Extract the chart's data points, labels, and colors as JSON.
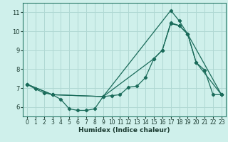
{
  "title": "",
  "xlabel": "Humidex (Indice chaleur)",
  "background_color": "#cff0eb",
  "grid_color": "#b0d8d3",
  "line_color": "#1a6b5a",
  "xlim": [
    -0.5,
    23.5
  ],
  "ylim": [
    5.5,
    11.5
  ],
  "xticks": [
    0,
    1,
    2,
    3,
    4,
    5,
    6,
    7,
    8,
    9,
    10,
    11,
    12,
    13,
    14,
    15,
    16,
    17,
    18,
    19,
    20,
    21,
    22,
    23
  ],
  "yticks": [
    6,
    7,
    8,
    9,
    10,
    11
  ],
  "line1_x": [
    0,
    1,
    2,
    3,
    4,
    5,
    6,
    7,
    8,
    9,
    10,
    11,
    12,
    13,
    14,
    15,
    16,
    17,
    18,
    19,
    20,
    21,
    22,
    23
  ],
  "line1_y": [
    7.2,
    6.95,
    6.75,
    6.65,
    6.4,
    5.9,
    5.82,
    5.82,
    5.9,
    6.55,
    6.6,
    6.65,
    7.05,
    7.1,
    7.55,
    8.55,
    9.0,
    10.4,
    10.3,
    9.85,
    8.35,
    7.95,
    6.65,
    6.65
  ],
  "line2_x": [
    0,
    3,
    9,
    15,
    16,
    17,
    18,
    19,
    20,
    23
  ],
  "line2_y": [
    7.2,
    6.65,
    6.55,
    8.55,
    9.0,
    10.45,
    10.3,
    9.85,
    8.35,
    6.65
  ],
  "line3_x": [
    0,
    3,
    9,
    17,
    18,
    19,
    23
  ],
  "line3_y": [
    7.2,
    6.65,
    6.55,
    11.1,
    10.55,
    9.85,
    6.65
  ]
}
